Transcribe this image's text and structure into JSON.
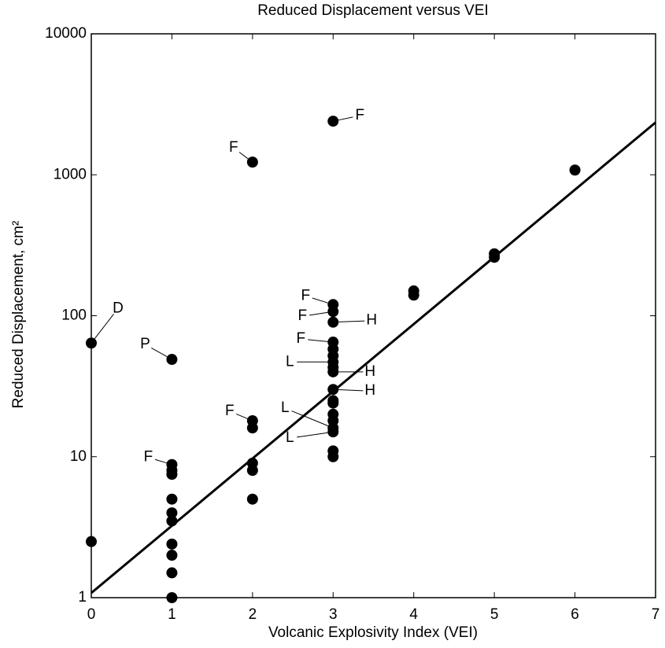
{
  "chart_data": {
    "type": "scatter",
    "title": "Reduced Displacement versus VEI",
    "xlabel": "Volcanic Explosivity Index (VEI)",
    "ylabel": "Reduced Displacement, cm²",
    "xlim": [
      0,
      7
    ],
    "xticks": [
      0,
      1,
      2,
      3,
      4,
      5,
      6,
      7
    ],
    "ylim": [
      1,
      10000
    ],
    "yticks": [
      1,
      10,
      100,
      1000,
      10000
    ],
    "ylog": true,
    "grid": false,
    "series": [
      {
        "color": "#000000",
        "style": "points",
        "x": [
          0,
          0,
          1,
          1,
          1,
          1,
          1,
          1,
          1,
          1,
          1,
          1,
          1,
          2,
          2,
          2,
          2,
          2,
          2,
          3,
          3,
          3,
          3,
          3,
          3,
          3,
          3,
          3,
          3,
          3,
          3,
          3,
          3,
          3,
          3,
          3,
          3,
          3,
          4,
          4,
          5,
          5,
          6
        ],
        "values": [
          64,
          2.5,
          49,
          8.8,
          8,
          7.5,
          5,
          4,
          3.5,
          2.4,
          2,
          1.5,
          1,
          1230,
          18,
          16,
          9,
          8,
          5,
          2400,
          120,
          107,
          90,
          65,
          58,
          52,
          47,
          43,
          40,
          30,
          25,
          24,
          20,
          18,
          16,
          15,
          11,
          10,
          150,
          140,
          275,
          260,
          1080
        ]
      },
      {
        "color": "#000000",
        "style": "line",
        "x": [
          0,
          7
        ],
        "values": [
          1.08,
          2350
        ]
      }
    ],
    "annotations": [
      {
        "text": "D",
        "x": 0,
        "y": 64
      },
      {
        "text": "P",
        "x": 1,
        "y": 49
      },
      {
        "text": "F",
        "x": 1,
        "y": 8.8
      },
      {
        "text": "F",
        "x": 2,
        "y": 1230
      },
      {
        "text": "F",
        "x": 2,
        "y": 18
      },
      {
        "text": "F",
        "x": 3,
        "y": 2400
      },
      {
        "text": "F",
        "x": 3,
        "y": 120
      },
      {
        "text": "F",
        "x": 3,
        "y": 107
      },
      {
        "text": "H",
        "x": 3,
        "y": 90
      },
      {
        "text": "F",
        "x": 3,
        "y": 65
      },
      {
        "text": "L",
        "x": 3,
        "y": 47
      },
      {
        "text": "H",
        "x": 3,
        "y": 40
      },
      {
        "text": "H",
        "x": 3,
        "y": 30
      },
      {
        "text": "L",
        "x": 3,
        "y": 16
      },
      {
        "text": "L",
        "x": 3,
        "y": 15
      }
    ]
  }
}
